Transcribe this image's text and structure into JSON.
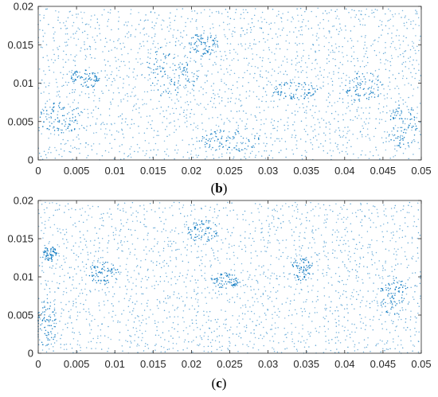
{
  "chart_data": [
    {
      "type": "scatter",
      "panel_label": "b",
      "xlim": [
        0,
        0.05
      ],
      "ylim": [
        0,
        0.02
      ],
      "x_ticks": [
        "0",
        "0.005",
        "0.01",
        "0.015",
        "0.02",
        "0.025",
        "0.03",
        "0.035",
        "0.04",
        "0.045",
        "0.05"
      ],
      "y_ticks": [
        "0",
        "0.005",
        "0.01",
        "0.015",
        "0.02"
      ],
      "marker_color": "#0072BD",
      "grid": false,
      "dense_clusters": [
        {
          "x": 0.0175,
          "y": 0.0115,
          "rx": 0.0035,
          "ry": 0.0035
        },
        {
          "x": 0.006,
          "y": 0.0105,
          "rx": 0.002,
          "ry": 0.0012
        },
        {
          "x": 0.0425,
          "y": 0.0095,
          "rx": 0.0025,
          "ry": 0.002
        },
        {
          "x": 0.0475,
          "y": 0.0045,
          "rx": 0.002,
          "ry": 0.003
        },
        {
          "x": 0.025,
          "y": 0.0025,
          "rx": 0.004,
          "ry": 0.0015
        },
        {
          "x": 0.0215,
          "y": 0.015,
          "rx": 0.002,
          "ry": 0.0015
        },
        {
          "x": 0.003,
          "y": 0.0055,
          "rx": 0.003,
          "ry": 0.002
        },
        {
          "x": 0.0335,
          "y": 0.009,
          "rx": 0.003,
          "ry": 0.0012
        }
      ]
    },
    {
      "type": "scatter",
      "panel_label": "c",
      "xlim": [
        0,
        0.05
      ],
      "ylim": [
        0,
        0.02
      ],
      "x_ticks": [
        "0",
        "0.005",
        "0.01",
        "0.015",
        "0.02",
        "0.025",
        "0.03",
        "0.035",
        "0.04",
        "0.045",
        "0.05"
      ],
      "y_ticks": [
        "0",
        "0.005",
        "0.01",
        "0.015",
        "0.02"
      ],
      "marker_color": "#0072BD",
      "grid": false,
      "dense_clusters": [
        {
          "x": 0.0015,
          "y": 0.013,
          "rx": 0.001,
          "ry": 0.001
        },
        {
          "x": 0.0465,
          "y": 0.0075,
          "rx": 0.002,
          "ry": 0.0025
        },
        {
          "x": 0.0345,
          "y": 0.011,
          "rx": 0.0015,
          "ry": 0.0015
        },
        {
          "x": 0.0245,
          "y": 0.0095,
          "rx": 0.002,
          "ry": 0.001
        },
        {
          "x": 0.0085,
          "y": 0.0105,
          "rx": 0.002,
          "ry": 0.0015
        },
        {
          "x": 0.001,
          "y": 0.004,
          "rx": 0.0015,
          "ry": 0.003
        },
        {
          "x": 0.0215,
          "y": 0.016,
          "rx": 0.002,
          "ry": 0.0015
        }
      ]
    }
  ]
}
